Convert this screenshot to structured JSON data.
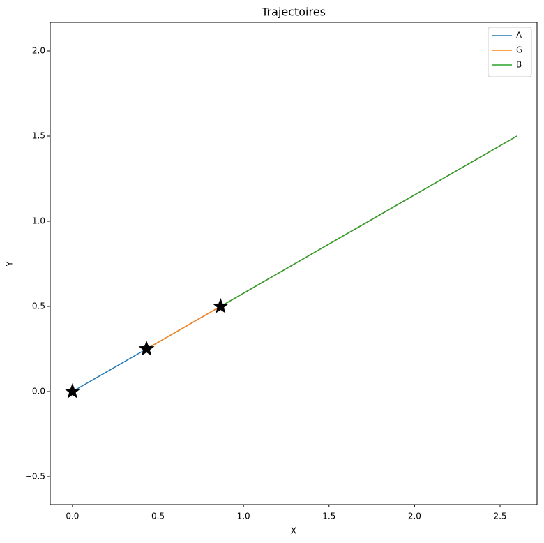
{
  "chart_data": {
    "type": "line",
    "title": "Trajectoires",
    "x_label": "X",
    "y_label": "Y",
    "series": [
      {
        "name": "A",
        "color": "#1f77b4",
        "x": [
          0,
          2.598
        ],
        "values": [
          0,
          1.5
        ]
      },
      {
        "name": "G",
        "color": "#ff7f0e",
        "x": [
          0.433,
          2.598
        ],
        "values": [
          0.25,
          1.5
        ]
      },
      {
        "name": "B",
        "color": "#2ca02c",
        "x": [
          0.866,
          2.598
        ],
        "values": [
          0.5,
          1.5
        ]
      }
    ],
    "start_marker": "star",
    "start_marker_color": "#000000",
    "xlim": [
      -0.13,
      2.716
    ],
    "ylim": [
      -0.664,
      2.168
    ],
    "xticks": [
      {
        "value": 0,
        "label": "0.0"
      },
      {
        "value": 0.5,
        "label": "0.5"
      },
      {
        "value": 1,
        "label": "1.0"
      },
      {
        "value": 1.5,
        "label": "1.5"
      },
      {
        "value": 2,
        "label": "2.0"
      },
      {
        "value": 2.5,
        "label": "2.5"
      }
    ],
    "yticks": [
      {
        "value": -0.5,
        "label": "−0.5"
      },
      {
        "value": 0,
        "label": "0.0"
      },
      {
        "value": 0.5,
        "label": "0.5"
      },
      {
        "value": 1,
        "label": "1.0"
      },
      {
        "value": 1.5,
        "label": "1.5"
      },
      {
        "value": 2,
        "label": "2.0"
      }
    ],
    "grid": false,
    "legend": "upper right"
  }
}
